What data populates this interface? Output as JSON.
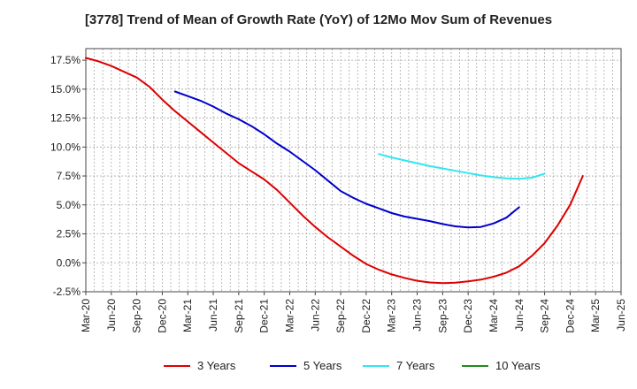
{
  "chart_data": {
    "type": "line",
    "title": "[3778]  Trend of Mean of Growth Rate (YoY) of 12Mo Mov Sum of Revenues",
    "xlabel": "",
    "ylabel": "",
    "ylim": [
      -2.5,
      18.5
    ],
    "y_ticks": [
      "17.5%",
      "15.0%",
      "12.5%",
      "10.0%",
      "7.5%",
      "5.0%",
      "2.5%",
      "0.0%",
      "-2.5%"
    ],
    "y_tick_values": [
      17.5,
      15.0,
      12.5,
      10.0,
      7.5,
      5.0,
      2.5,
      0.0,
      -2.5
    ],
    "x_ticks": [
      "Mar-20",
      "Jun-20",
      "Sep-20",
      "Dec-20",
      "Mar-21",
      "Jun-21",
      "Sep-21",
      "Dec-21",
      "Mar-22",
      "Jun-22",
      "Sep-22",
      "Dec-22",
      "Mar-23",
      "Jun-23",
      "Sep-23",
      "Dec-23",
      "Mar-24",
      "Jun-24",
      "Sep-24",
      "Dec-24",
      "Mar-25",
      "Jun-25"
    ],
    "grid": true,
    "legend_position": "bottom",
    "series": [
      {
        "name": "3 Years",
        "color": "#dd0000",
        "points": [
          [
            0,
            17.7
          ],
          [
            1,
            17.4
          ],
          [
            2,
            17.0
          ],
          [
            3,
            16.5
          ],
          [
            4,
            16.0
          ],
          [
            5,
            15.2
          ],
          [
            6,
            14.1
          ],
          [
            7,
            13.1
          ],
          [
            8,
            12.2
          ],
          [
            9,
            11.3
          ],
          [
            10,
            10.4
          ],
          [
            11,
            9.5
          ],
          [
            12,
            8.6
          ],
          [
            13,
            7.9
          ],
          [
            14,
            7.2
          ],
          [
            15,
            6.3
          ],
          [
            16,
            5.2
          ],
          [
            17,
            4.1
          ],
          [
            18,
            3.1
          ],
          [
            19,
            2.2
          ],
          [
            20,
            1.4
          ],
          [
            21,
            0.6
          ],
          [
            22,
            -0.1
          ],
          [
            23,
            -0.6
          ],
          [
            24,
            -1.0
          ],
          [
            25,
            -1.3
          ],
          [
            26,
            -1.55
          ],
          [
            27,
            -1.7
          ],
          [
            28,
            -1.75
          ],
          [
            29,
            -1.72
          ],
          [
            30,
            -1.6
          ],
          [
            31,
            -1.45
          ],
          [
            32,
            -1.2
          ],
          [
            33,
            -0.85
          ],
          [
            34,
            -0.3
          ],
          [
            35,
            0.6
          ],
          [
            36,
            1.7
          ],
          [
            37,
            3.2
          ],
          [
            38,
            5.0
          ],
          [
            39,
            7.5
          ]
        ]
      },
      {
        "name": "5 Years",
        "color": "#0000cc",
        "points": [
          [
            7,
            14.8
          ],
          [
            8,
            14.4
          ],
          [
            9,
            14.0
          ],
          [
            10,
            13.5
          ],
          [
            11,
            12.9
          ],
          [
            12,
            12.4
          ],
          [
            13,
            11.8
          ],
          [
            14,
            11.1
          ],
          [
            15,
            10.3
          ],
          [
            16,
            9.6
          ],
          [
            17,
            8.8
          ],
          [
            18,
            8.0
          ],
          [
            19,
            7.1
          ],
          [
            20,
            6.2
          ],
          [
            21,
            5.6
          ],
          [
            22,
            5.1
          ],
          [
            23,
            4.7
          ],
          [
            24,
            4.3
          ],
          [
            25,
            4.0
          ],
          [
            26,
            3.8
          ],
          [
            27,
            3.6
          ],
          [
            28,
            3.35
          ],
          [
            29,
            3.15
          ],
          [
            30,
            3.05
          ],
          [
            31,
            3.1
          ],
          [
            32,
            3.4
          ],
          [
            33,
            3.9
          ],
          [
            34,
            4.8
          ]
        ]
      },
      {
        "name": "7 Years",
        "color": "#33e6ee",
        "points": [
          [
            23,
            9.4
          ],
          [
            24,
            9.1
          ],
          [
            25,
            8.85
          ],
          [
            26,
            8.6
          ],
          [
            27,
            8.35
          ],
          [
            28,
            8.15
          ],
          [
            29,
            7.95
          ],
          [
            30,
            7.75
          ],
          [
            31,
            7.55
          ],
          [
            32,
            7.4
          ],
          [
            33,
            7.3
          ],
          [
            34,
            7.25
          ],
          [
            35,
            7.35
          ],
          [
            36,
            7.7
          ]
        ]
      },
      {
        "name": "10 Years",
        "color": "#228b22",
        "points": []
      }
    ]
  }
}
